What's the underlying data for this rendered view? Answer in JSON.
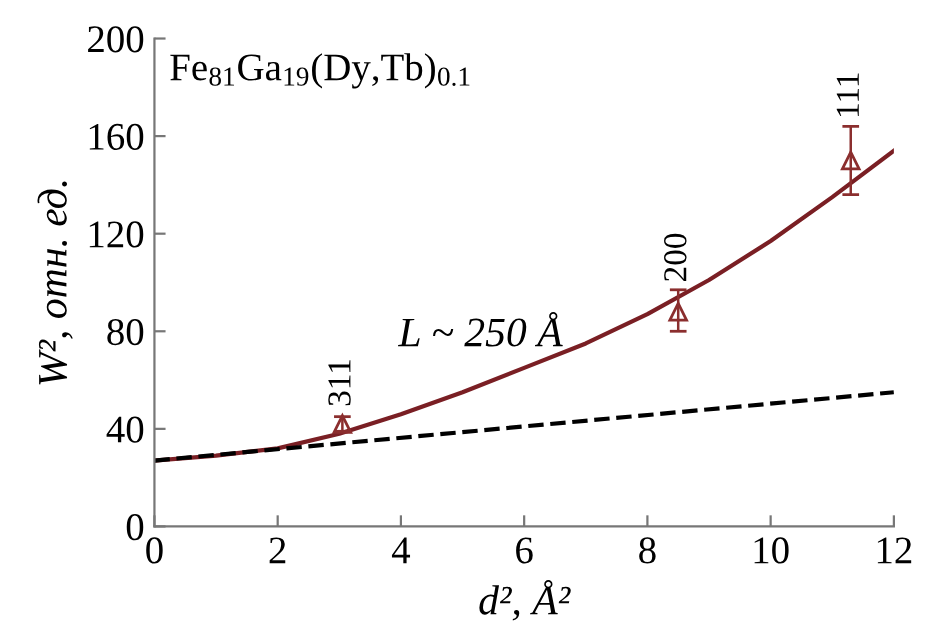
{
  "chart_data": {
    "type": "scatter",
    "xlabel": "d², Å²",
    "ylabel": "W², отн. ед.",
    "xlim": [
      0,
      12
    ],
    "xticks": [
      0,
      2,
      4,
      6,
      8,
      10,
      12
    ],
    "ylim": [
      0,
      200
    ],
    "yticks": [
      0,
      40,
      80,
      120,
      160,
      200
    ],
    "grid": false,
    "legend": false,
    "series": [
      {
        "color": "#8b2e2e",
        "marker": "triangle",
        "x": [
          3.05,
          8.5,
          11.3
        ],
        "values": [
          42,
          88,
          150
        ],
        "errors": [
          [
            39,
            45
          ],
          [
            80,
            97
          ],
          [
            136,
            164
          ]
        ]
      },
      {
        "type": "line",
        "color": "#7a1f24",
        "marker": "none",
        "line_style": "solid",
        "x": [
          0,
          1,
          2,
          3,
          4,
          5,
          6,
          7,
          8,
          9,
          10,
          11,
          12
        ],
        "values": [
          27,
          29,
          32,
          38,
          46,
          55,
          65,
          75,
          87,
          101,
          117,
          135,
          154
        ]
      },
      {
        "type": "line",
        "color": "#000000",
        "marker": "none",
        "line_style": "dashed",
        "x": [
          0,
          12
        ],
        "values": [
          27,
          55
        ]
      }
    ],
    "annotations": [
      {
        "text": "311",
        "x": 3.05,
        "y": 49
      },
      {
        "text": "200",
        "x": 8.5,
        "y": 100
      },
      {
        "text": "111",
        "x": 11.3,
        "y": 167
      },
      "L ~ 250 Å",
      "Fe$_{81}$Ga$_{19}$(Dy,Tb)$_{0.1}$"
    ]
  }
}
